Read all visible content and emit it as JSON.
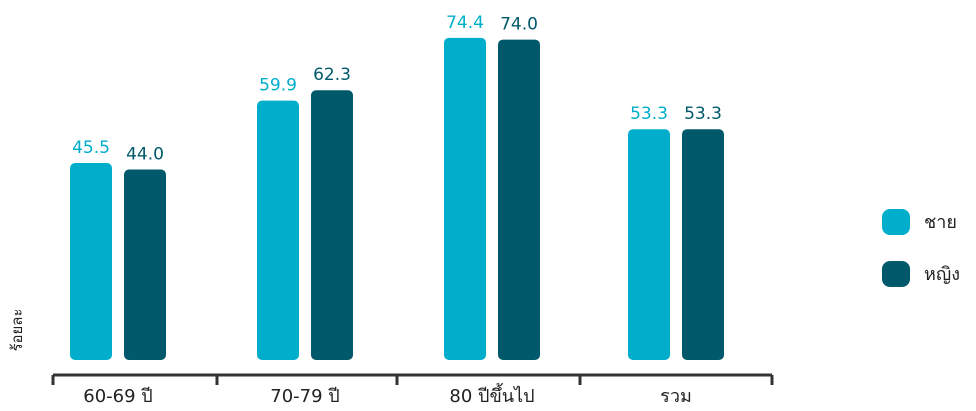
{
  "chart_data": {
    "type": "bar",
    "ylabel": "ร้อยละ",
    "categories": [
      "60-69 ปี",
      "70-79 ปี",
      "80 ปีขึ้นไป",
      "รวม"
    ],
    "series": [
      {
        "name": "ชาย",
        "color": "#00AECB",
        "values": [
          45.5,
          59.9,
          74.4,
          53.3
        ]
      },
      {
        "name": "หญิง",
        "color": "#00596A",
        "values": [
          44.0,
          62.3,
          74.0,
          53.3
        ]
      }
    ],
    "ylim": [
      0,
      80
    ],
    "grid": false,
    "legend_position": "right"
  }
}
